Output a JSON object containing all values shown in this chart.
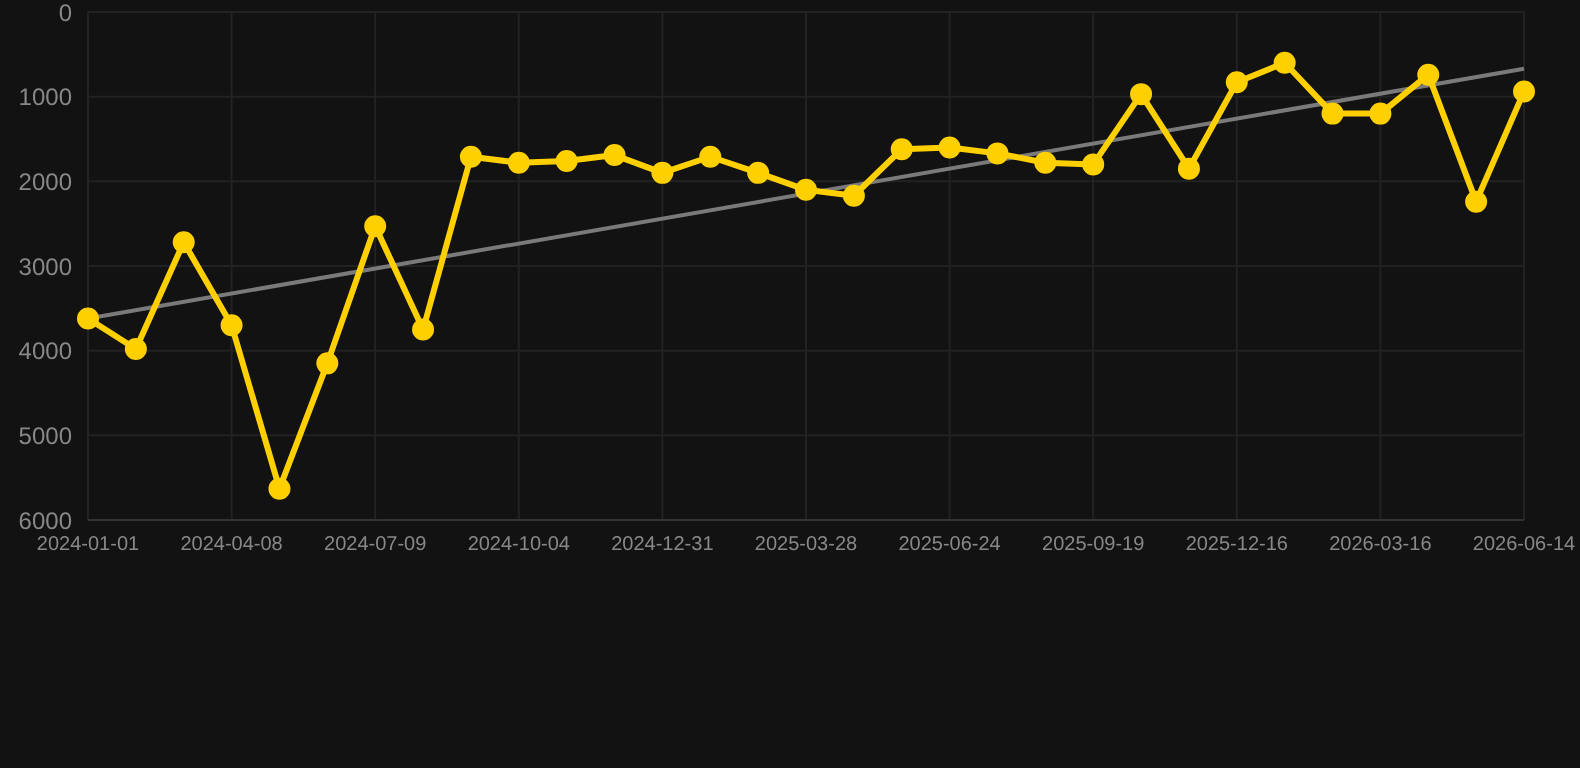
{
  "chart_data": {
    "type": "line",
    "categories": [
      "2024-01-01",
      null,
      null,
      "2024-04-08",
      null,
      null,
      "2024-07-09",
      null,
      null,
      "2024-10-04",
      null,
      null,
      "2024-12-31",
      null,
      null,
      "2025-03-28",
      null,
      null,
      "2025-06-24",
      null,
      null,
      "2025-09-19",
      null,
      null,
      "2025-12-16",
      null,
      null,
      "2026-03-16",
      null,
      null,
      "2026-06-14"
    ],
    "series": [
      {
        "color": "#ffd000",
        "marker": "circle",
        "values": [
          3620,
          3980,
          2720,
          3700,
          5630,
          4150,
          2530,
          3750,
          1710,
          1780,
          1760,
          1690,
          1900,
          1710,
          1900,
          2100,
          2170,
          1620,
          1600,
          1670,
          1780,
          1800,
          970,
          1850,
          830,
          600,
          1200,
          1200,
          740,
          2240,
          940
        ]
      },
      {
        "color": "#7a7a7a",
        "marker": "none",
        "values": [
          3620,
          null,
          null,
          null,
          null,
          null,
          null,
          null,
          null,
          null,
          null,
          null,
          null,
          null,
          null,
          null,
          null,
          null,
          null,
          null,
          null,
          null,
          null,
          null,
          null,
          null,
          null,
          null,
          null,
          null,
          670
        ]
      }
    ],
    "ylim": [
      6000,
      0
    ],
    "yticks": [
      0,
      1000,
      2000,
      3000,
      4000,
      5000,
      6000
    ],
    "grid": true,
    "line_style": "solid"
  }
}
